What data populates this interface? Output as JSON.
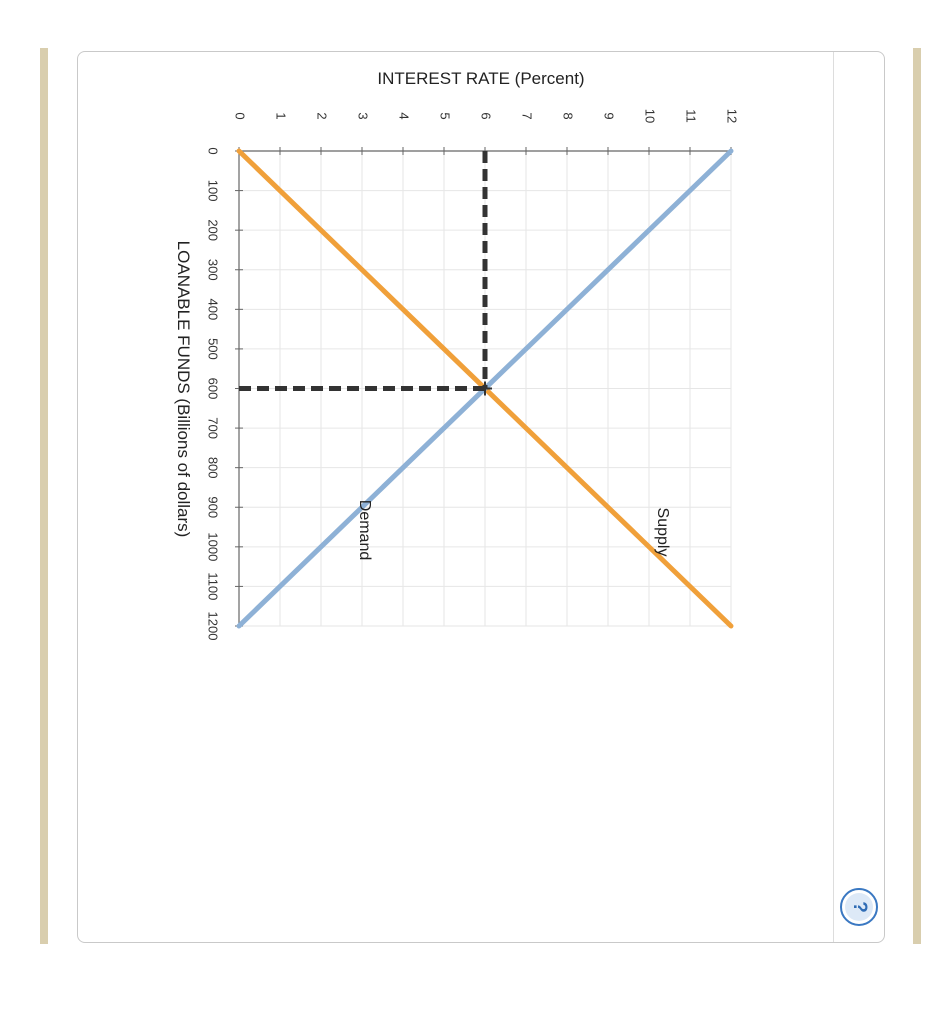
{
  "help_button": {
    "label": "?",
    "icon": "question-mark-icon"
  },
  "chart_data": {
    "type": "line",
    "title": "",
    "xlabel": "LOANABLE FUNDS (Billions of dollars)",
    "ylabel": "INTEREST RATE (Percent)",
    "xlim": [
      0,
      1200
    ],
    "ylim": [
      0,
      12
    ],
    "x_ticks": [
      "0",
      "100",
      "200",
      "300",
      "400",
      "500",
      "600",
      "700",
      "800",
      "900",
      "1000",
      "1100",
      "1200"
    ],
    "y_ticks": [
      "0",
      "1",
      "2",
      "3",
      "4",
      "5",
      "6",
      "7",
      "8",
      "9",
      "10",
      "11",
      "12"
    ],
    "grid": true,
    "orientation": "rotated 90 degrees clockwise",
    "series": [
      {
        "name": "Supply",
        "color": "#f0a03a",
        "x": [
          0,
          1200
        ],
        "y": [
          0,
          12
        ]
      },
      {
        "name": "Demand",
        "color": "#8eb1d6",
        "x": [
          0,
          1200
        ],
        "y": [
          12,
          0
        ]
      }
    ],
    "equilibrium": {
      "x": 600,
      "y": 6,
      "color": "#333333",
      "style": "dashed"
    }
  }
}
